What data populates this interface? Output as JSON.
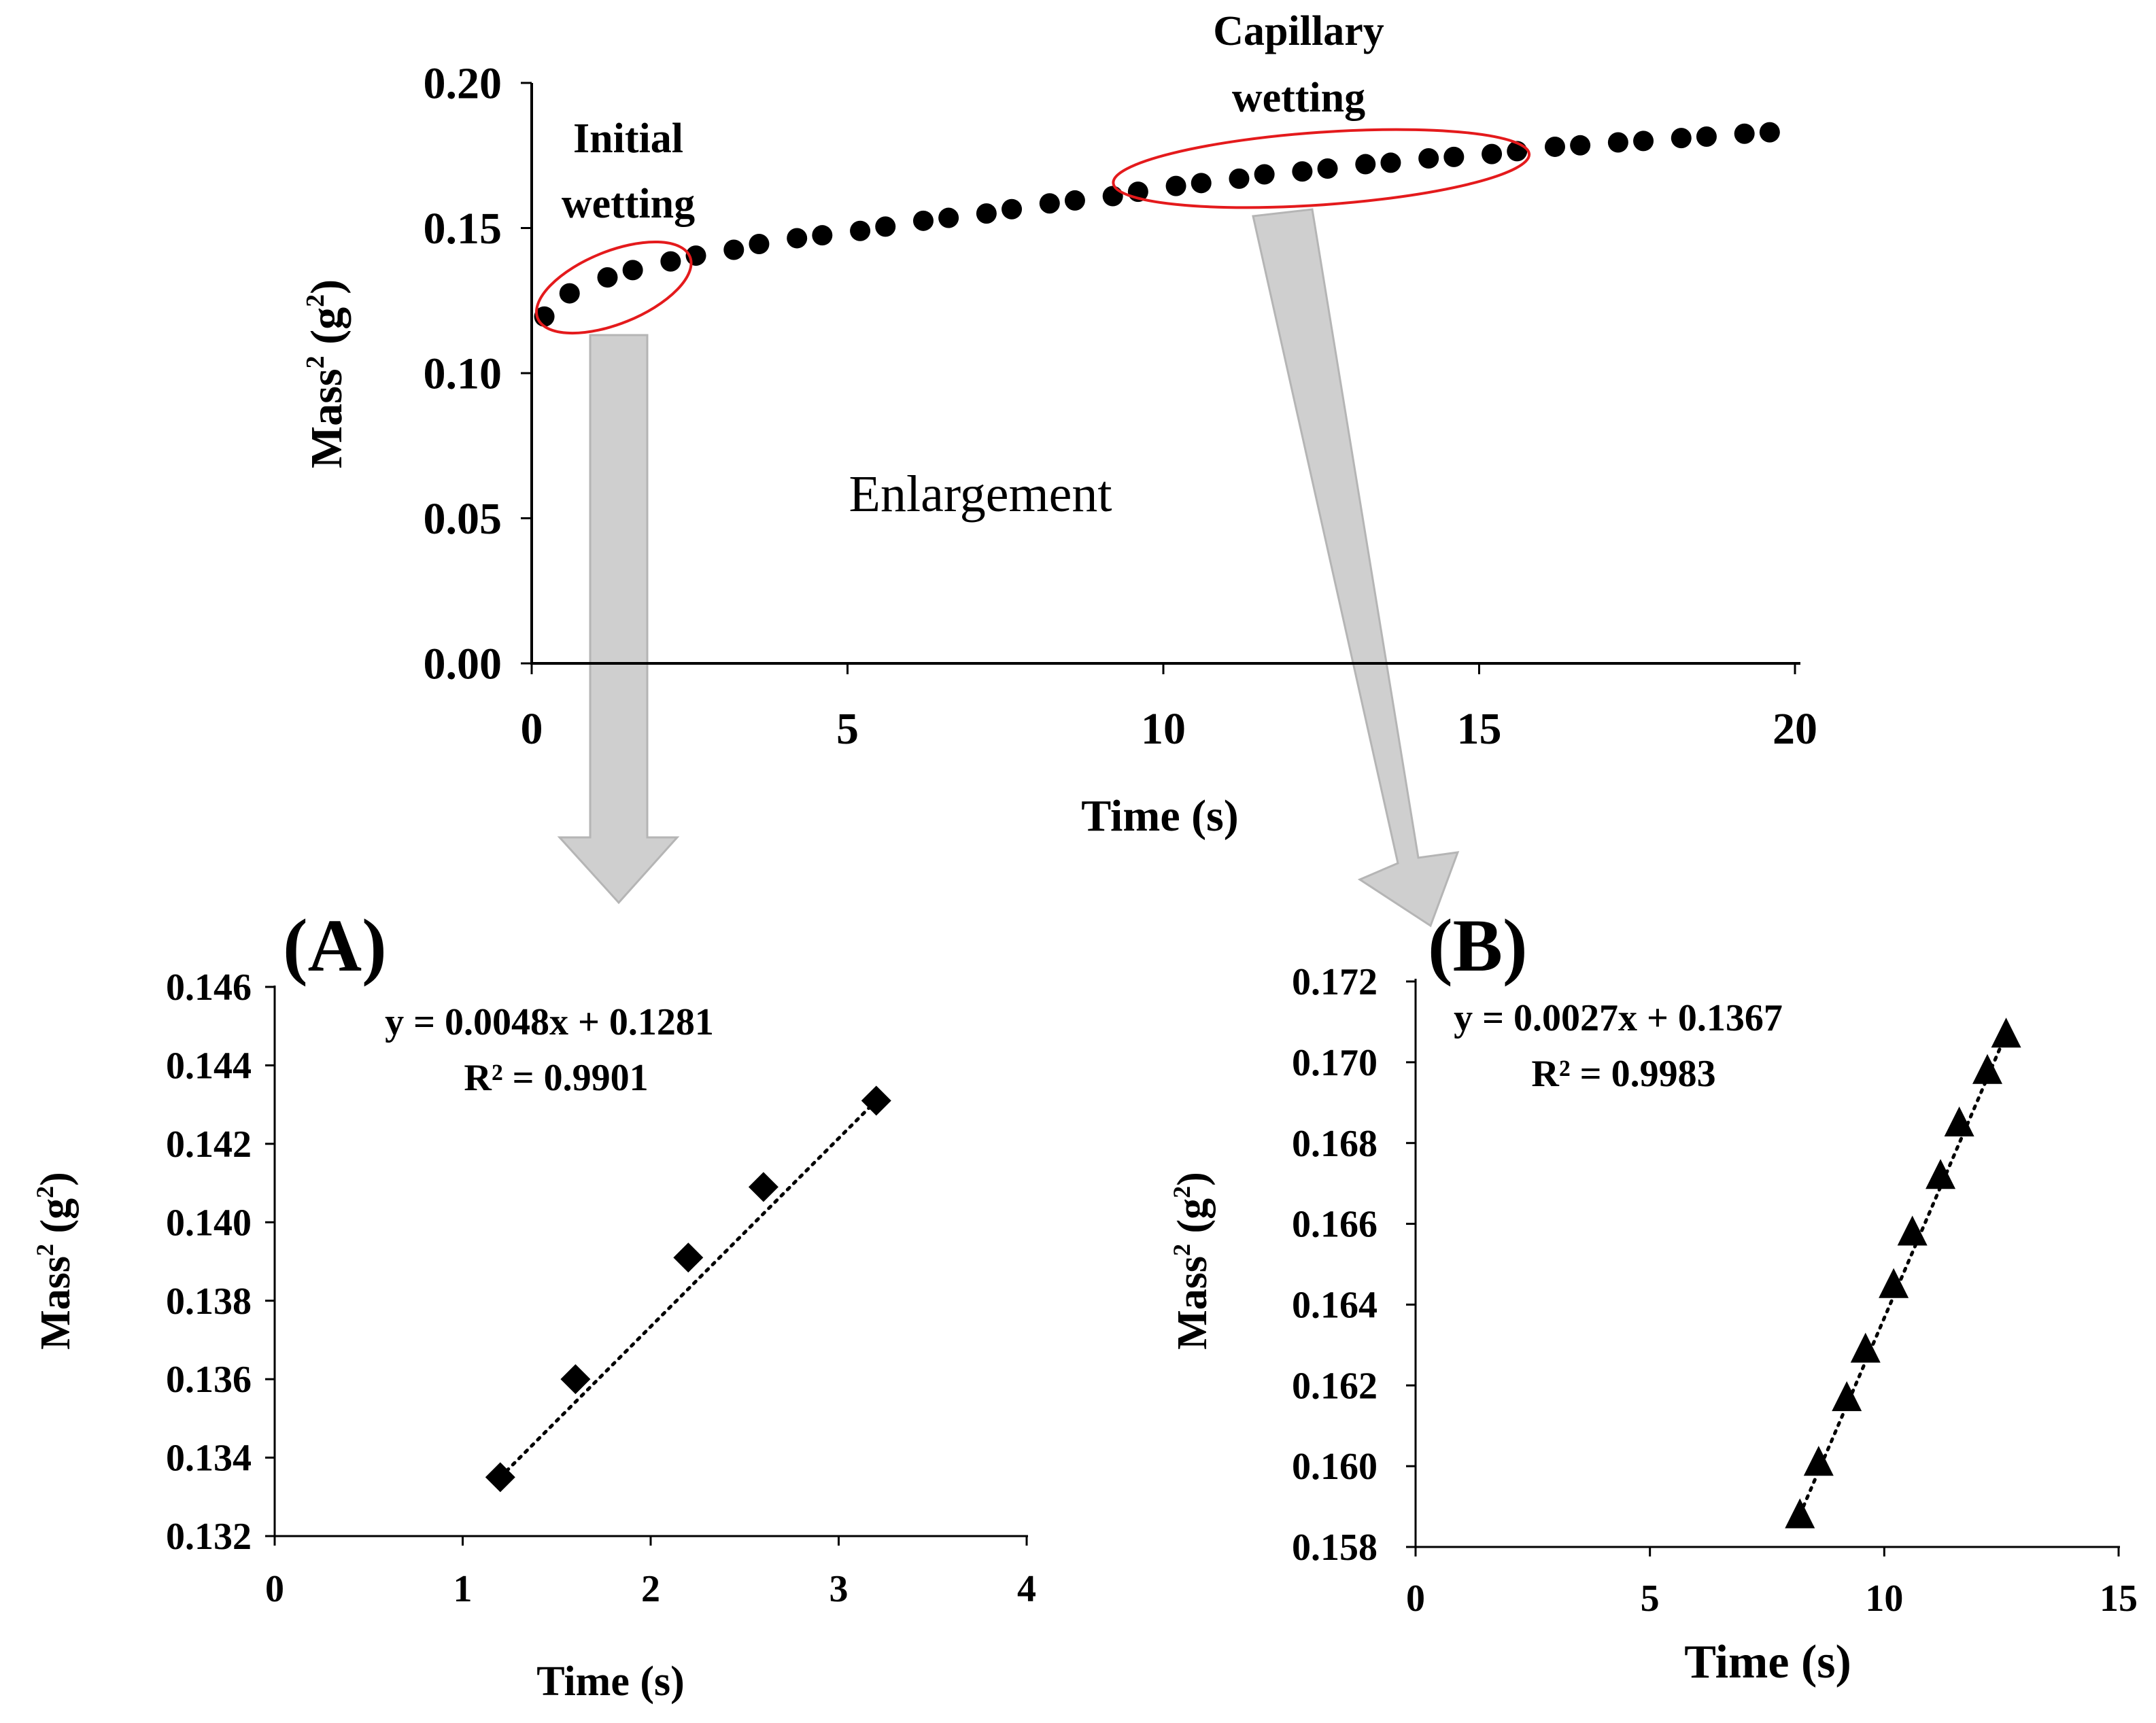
{
  "chart_data": [
    {
      "id": "main",
      "type": "scatter",
      "ylabel_base": "Mass",
      "ylabel_sup": "2",
      "ylabel_unit_open": " (g",
      "ylabel_unit_sup": "2",
      "ylabel_unit_close": ")",
      "xlabel": "Time (s)",
      "xlim": [
        0,
        20
      ],
      "ylim": [
        0,
        0.2
      ],
      "xticks": [
        0,
        5,
        10,
        15,
        20
      ],
      "yticks": [
        "0.00",
        "0.05",
        "0.10",
        "0.15",
        "0.20"
      ],
      "marker": "circle",
      "series": [
        {
          "name": "Mass^2",
          "x": [
            0.2,
            0.6,
            1.2,
            1.6,
            2.2,
            2.6,
            3.2,
            3.6,
            4.2,
            4.6,
            5.2,
            5.6,
            6.2,
            6.6,
            7.2,
            7.6,
            8.2,
            8.6,
            9.2,
            9.6,
            10.2,
            10.6,
            11.2,
            11.6,
            12.2,
            12.6,
            13.2,
            13.6,
            14.2,
            14.6,
            15.2,
            15.6,
            16.2,
            16.6,
            17.2,
            17.6,
            18.2,
            18.6,
            19.2,
            19.6
          ],
          "y": [
            0.1195,
            0.1275,
            0.133,
            0.1355,
            0.1385,
            0.1405,
            0.1425,
            0.1445,
            0.1465,
            0.1475,
            0.149,
            0.1505,
            0.1525,
            0.1535,
            0.155,
            0.1565,
            0.1585,
            0.1595,
            0.161,
            0.1625,
            0.1645,
            0.1655,
            0.167,
            0.1685,
            0.1695,
            0.1705,
            0.172,
            0.1725,
            0.174,
            0.1745,
            0.1755,
            0.1765,
            0.178,
            0.1785,
            0.1795,
            0.18,
            0.181,
            0.1815,
            0.1825,
            0.183
          ]
        }
      ],
      "annotations": {
        "initial_line1": "Initial",
        "initial_line2": "wetting",
        "capillary_line1": "Capillary",
        "capillary_line2": "wetting",
        "enlargement": "Enlargement"
      },
      "highlight_ranges": [
        {
          "x": [
            0.0,
            2.6
          ],
          "y": [
            0.117,
            0.142
          ],
          "color": "#e41a1c"
        },
        {
          "x": [
            9.2,
            15.8
          ],
          "y": [
            0.158,
            0.183
          ],
          "color": "#e41a1c"
        }
      ]
    },
    {
      "id": "A",
      "type": "scatter",
      "panel_label": "(A)",
      "ylabel_base": "Mass",
      "ylabel_sup": "2",
      "ylabel_unit_open": " (g",
      "ylabel_unit_sup": "2",
      "ylabel_unit_close": ")",
      "xlabel": "Time (s)",
      "xlim": [
        0,
        4
      ],
      "ylim": [
        0.132,
        0.146
      ],
      "xticks": [
        "0",
        "1",
        "2",
        "3",
        "4"
      ],
      "yticks": [
        "0.132",
        "0.134",
        "0.136",
        "0.138",
        "0.140",
        "0.142",
        "0.144",
        "0.146"
      ],
      "marker": "diamond",
      "series": [
        {
          "name": "Initial wetting",
          "x": [
            1.2,
            1.6,
            2.2,
            2.6,
            3.2
          ],
          "y": [
            0.1335,
            0.136,
            0.1391,
            0.1409,
            0.1431
          ]
        }
      ],
      "trendline": {
        "slope": 0.0048,
        "intercept": 0.1281,
        "x_range": [
          1.2,
          3.2
        ],
        "style": "dotted"
      },
      "equation": "y = 0.0048x + 0.1281",
      "r2": "R² = 0.9901"
    },
    {
      "id": "B",
      "type": "scatter",
      "panel_label": "(B)",
      "ylabel_base": "Mass",
      "ylabel_sup": "2",
      "ylabel_unit_open": " (g",
      "ylabel_unit_sup": "2",
      "ylabel_unit_close": ")",
      "xlabel": "Time (s)",
      "xlim": [
        0,
        15
      ],
      "ylim": [
        0.158,
        0.172
      ],
      "xticks": [
        "0",
        "5",
        "10",
        "15"
      ],
      "yticks": [
        "0.158",
        "0.160",
        "0.162",
        "0.164",
        "0.166",
        "0.168",
        "0.170",
        "0.172"
      ],
      "marker": "triangle",
      "series": [
        {
          "name": "Capillary wetting",
          "x": [
            8.2,
            8.6,
            9.2,
            9.6,
            10.2,
            10.6,
            11.2,
            11.6,
            12.2,
            12.6
          ],
          "y": [
            0.1588,
            0.1601,
            0.1617,
            0.1629,
            0.1645,
            0.1658,
            0.1672,
            0.1685,
            0.1698,
            0.1707
          ]
        }
      ],
      "trendline": {
        "slope": 0.0027,
        "intercept": 0.1367,
        "x_range": [
          8.2,
          12.6
        ],
        "style": "dotted"
      },
      "equation": "y = 0.0027x + 0.1367",
      "r2": "R² = 0.9983"
    }
  ]
}
